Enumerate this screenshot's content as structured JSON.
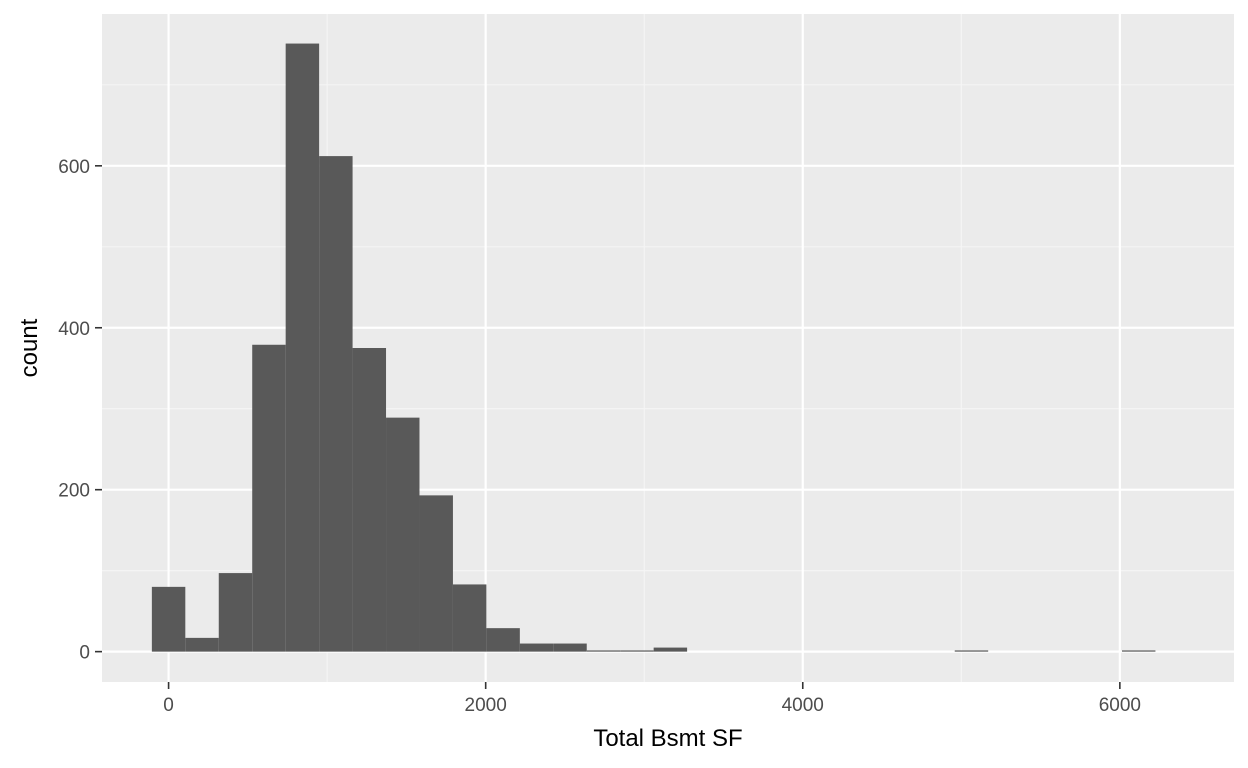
{
  "chart_data": {
    "type": "histogram",
    "xlabel": "Total Bsmt SF",
    "ylabel": "count",
    "xlim": [
      -420,
      6720
    ],
    "ylim": [
      -37.5,
      787.5
    ],
    "x_ticks": [
      0,
      2000,
      4000,
      6000
    ],
    "x_tick_labels": [
      "0",
      "2000",
      "4000",
      "6000"
    ],
    "y_ticks": [
      0,
      200,
      400,
      600
    ],
    "y_tick_labels": [
      "0",
      "200",
      "400",
      "600"
    ],
    "bin_width": 211,
    "bin_centers": [
      0,
      211,
      422,
      633,
      844,
      1055,
      1266,
      1477,
      1688,
      1899,
      2110,
      2321,
      2532,
      2743,
      2954,
      3165,
      3376,
      3587,
      3798,
      4009,
      4220,
      4431,
      4642,
      4853,
      5064,
      5275,
      5486,
      5697,
      5908,
      6119
    ],
    "counts": [
      80,
      17,
      97,
      379,
      751,
      612,
      375,
      289,
      193,
      83,
      29,
      10,
      10,
      1,
      1,
      5,
      0,
      0,
      0,
      0,
      0,
      0,
      0,
      0,
      1,
      0,
      0,
      0,
      0,
      1
    ],
    "colors": {
      "panel_background": "#ebebeb",
      "grid_major": "#ffffff",
      "grid_minor": "#f5f5f5",
      "bar_fill": "#595959"
    },
    "grid": true,
    "legend": "none"
  }
}
